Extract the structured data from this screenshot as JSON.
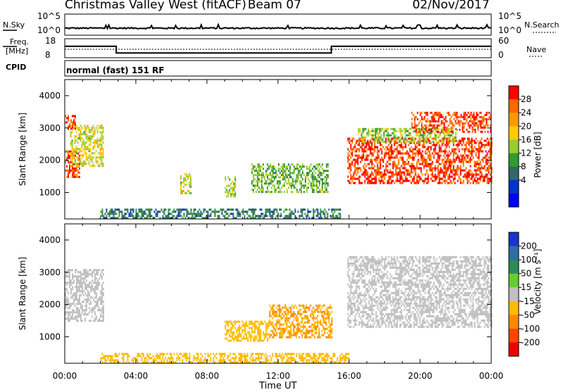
{
  "header": {
    "station": "Christmas Valley West (fitACF)",
    "beam": "Beam 07",
    "date": "02/Nov/2017"
  },
  "top_panel": {
    "nsky_label": "N.Sky",
    "nsearch_label": "N.Search",
    "left_ticks": [
      "10^5",
      "10^0"
    ],
    "right_ticks": [
      "10^5",
      "10^0"
    ],
    "freq_label_line1": "Freq.",
    "freq_label_line2": "[MHz]",
    "freq_ticks": [
      "18",
      "8"
    ],
    "nave_label": "Nave",
    "nave_ticks": [
      "60",
      "0"
    ],
    "cpid_label": "CPID",
    "cpid_text": "normal (fast) 151 RF"
  },
  "axes": {
    "x_ticks": [
      "00:00",
      "04:00",
      "08:00",
      "12:00",
      "16:00",
      "20:00",
      "00:00"
    ],
    "xlabel": "Time UT",
    "ylabel": "Slant Range [km]",
    "y_ticks": [
      "4000",
      "3000",
      "2000",
      "1000"
    ]
  },
  "colorbars": {
    "power": {
      "label": "Power [dB]",
      "ticks": [
        "28",
        "24",
        "20",
        "16",
        "12",
        "8",
        "4"
      ],
      "colors": [
        "#ff0000",
        "#ff6600",
        "#ff9900",
        "#ffcc00",
        "#99cc33",
        "#339933",
        "#336666",
        "#0033cc",
        "#0000ff"
      ]
    },
    "velocity": {
      "label": "Velocity [m s⁻¹]",
      "ticks": [
        "200",
        "100",
        "50",
        "15",
        "-15",
        "-50",
        "-100",
        "-200"
      ],
      "colors": [
        "#1a33cc",
        "#2f6ea0",
        "#2e8b57",
        "#66cc33",
        "#c0c0c0",
        "#ffbb00",
        "#ff8800",
        "#ff4400",
        "#ee0000"
      ]
    }
  },
  "chart_data": {
    "type": "heatmap",
    "title": "Christmas Valley West (fitACF)",
    "xlabel": "Time UT",
    "ylabel": "Slant Range [km]",
    "xlim": [
      0,
      24
    ],
    "ylim": [
      180,
      4500
    ],
    "freq_mhz_segments": [
      {
        "start": 0,
        "end": 2.9,
        "freq": 14
      },
      {
        "start": 2.9,
        "end": 15.0,
        "freq": 10.5
      },
      {
        "start": 15.0,
        "end": 24,
        "freq": 14
      }
    ],
    "power_regions": [
      {
        "t0": 0.0,
        "t1": 0.8,
        "r0": 1500,
        "r1": 2300,
        "power_db": 28
      },
      {
        "t0": 0.3,
        "t1": 2.2,
        "r0": 1800,
        "r1": 3100,
        "power_db": 18
      },
      {
        "t0": 0.0,
        "t1": 0.6,
        "r0": 3000,
        "r1": 3400,
        "power_db": 28
      },
      {
        "t0": 6.5,
        "t1": 7.1,
        "r0": 1000,
        "r1": 1600,
        "power_db": 18
      },
      {
        "t0": 9.0,
        "t1": 9.6,
        "r0": 900,
        "r1": 1500,
        "power_db": 16
      },
      {
        "t0": 10.5,
        "t1": 14.8,
        "r0": 1000,
        "r1": 1900,
        "power_db": 14
      },
      {
        "t0": 15.9,
        "t1": 24.0,
        "r0": 1300,
        "r1": 2700,
        "power_db": 28
      },
      {
        "t0": 16.5,
        "t1": 22.0,
        "r0": 2600,
        "r1": 3000,
        "power_db": 16
      },
      {
        "t0": 19.5,
        "t1": 24.0,
        "r0": 2900,
        "r1": 3500,
        "power_db": 28
      },
      {
        "t0": 2.0,
        "t1": 15.5,
        "r0": 180,
        "r1": 500,
        "power_db": 10
      }
    ],
    "velocity_regions": [
      {
        "t0": 0.0,
        "t1": 2.2,
        "r0": 1500,
        "r1": 3100,
        "velocity": 0
      },
      {
        "t0": 11.5,
        "t1": 15.0,
        "r0": 1000,
        "r1": 2000,
        "velocity": -50
      },
      {
        "t0": 9.0,
        "t1": 11.5,
        "r0": 900,
        "r1": 1500,
        "velocity": -40
      },
      {
        "t0": 15.9,
        "t1": 24.0,
        "r0": 1300,
        "r1": 3500,
        "velocity": 0
      },
      {
        "t0": 2.0,
        "t1": 16.0,
        "r0": 180,
        "r1": 500,
        "velocity": -40
      }
    ]
  }
}
